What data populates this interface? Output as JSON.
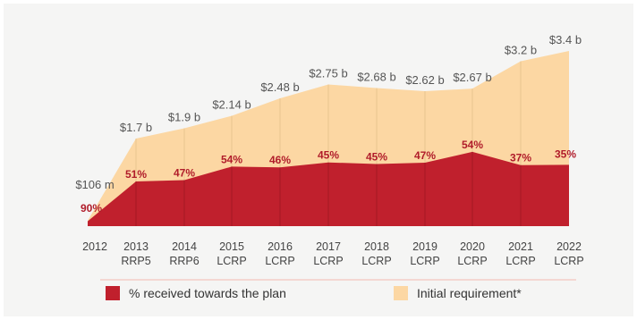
{
  "colors": {
    "requirement_fill": "#fcd7a3",
    "received_fill": "#c0202d",
    "percent_text": "#b01c2a",
    "divider": "#f2b9b0",
    "gridline": "#e9c58f"
  },
  "chart_data": {
    "type": "area",
    "categories": [
      "2012",
      "2013",
      "2014",
      "2015",
      "2016",
      "2017",
      "2018",
      "2019",
      "2020",
      "2021",
      "2022"
    ],
    "category_sublabels": [
      "",
      "RRP5",
      "RRP6",
      "LCRP",
      "LCRP",
      "LCRP",
      "LCRP",
      "LCRP",
      "LCRP",
      "LCRP",
      "LCRP"
    ],
    "series": [
      {
        "name": "Initial requirement*",
        "values": [
          0.106,
          1.7,
          1.9,
          2.14,
          2.48,
          2.75,
          2.68,
          2.62,
          2.67,
          3.2,
          3.4
        ],
        "labels": [
          "$106 m",
          "$1.7 b",
          "$1.9 b",
          "$2.14 b",
          "$2.48 b",
          "$2.75 b",
          "$2.68 b",
          "$2.62 b",
          "$2.67 b",
          "$3.2 b",
          "$3.4 b"
        ]
      },
      {
        "name": "% received towards the plan",
        "values": [
          90,
          51,
          47,
          54,
          46,
          45,
          45,
          47,
          54,
          37,
          35
        ],
        "labels": [
          "90%",
          "51%",
          "47%",
          "54%",
          "46%",
          "45%",
          "45%",
          "47%",
          "54%",
          "37%",
          "35%"
        ]
      }
    ],
    "legend_position": "bottom",
    "grid": false
  }
}
